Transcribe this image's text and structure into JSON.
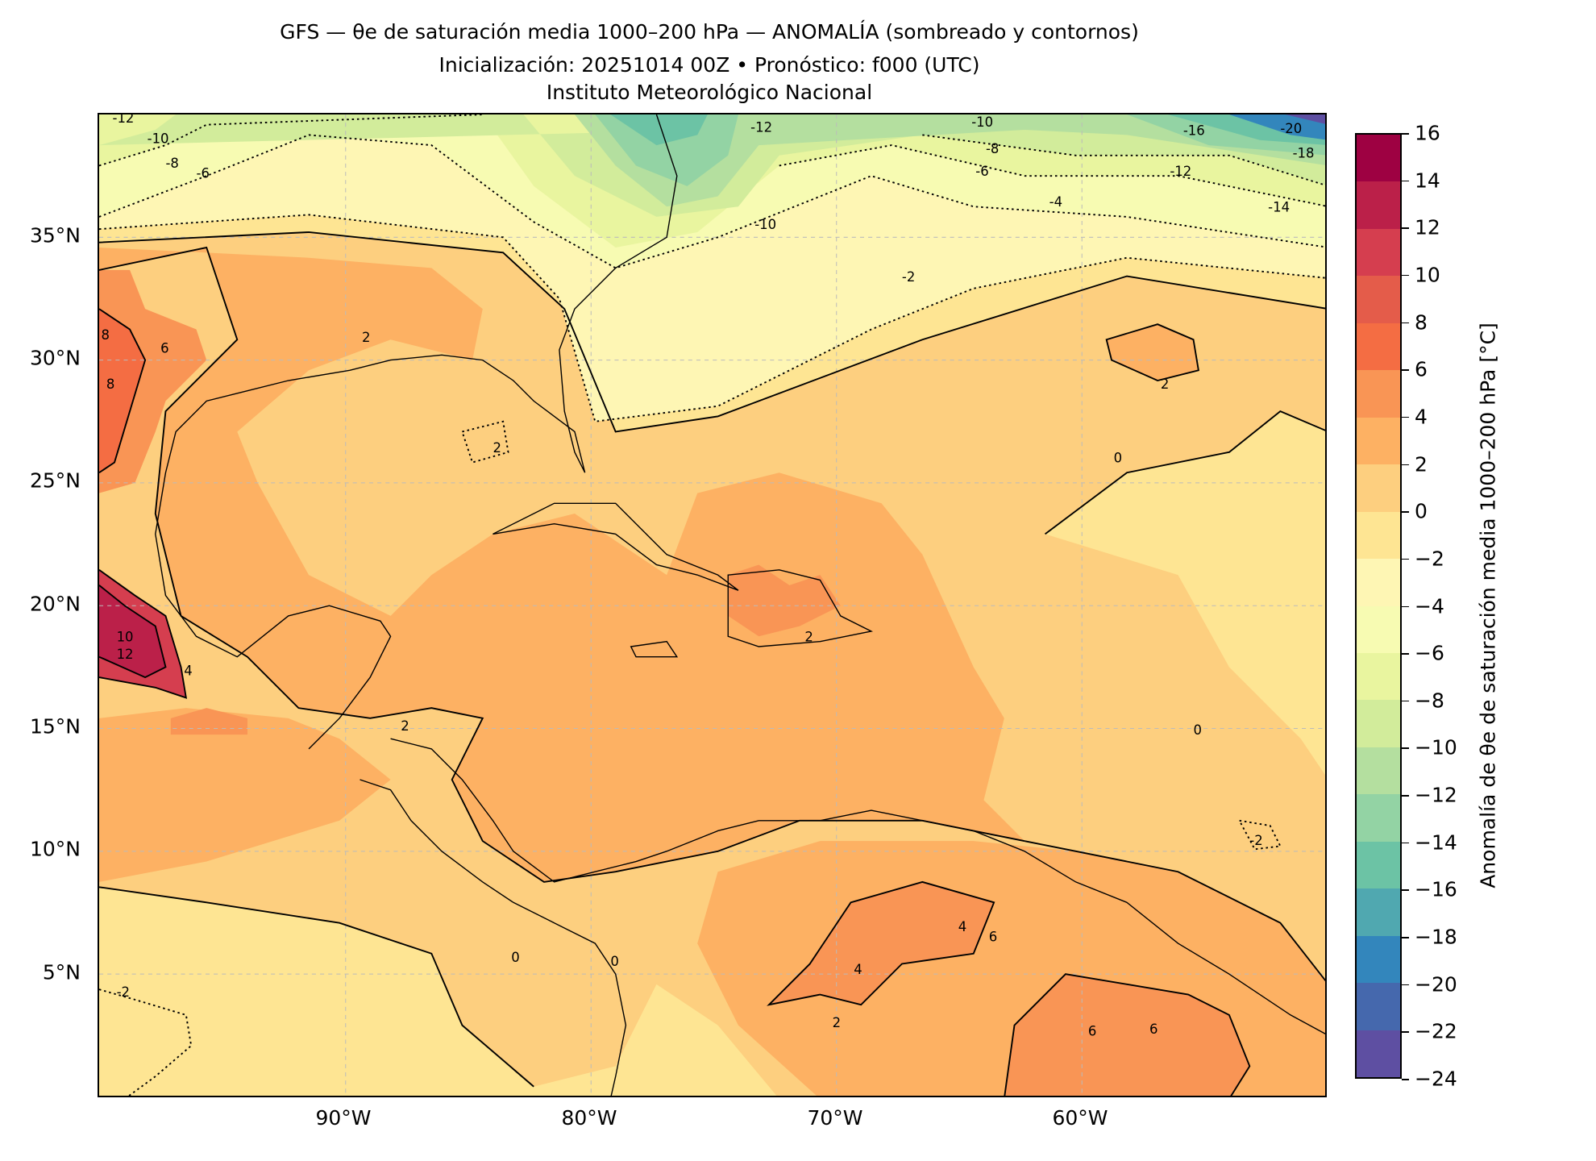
{
  "title": {
    "line1": "GFS — θe de saturación media 1000–200 hPa — ANOMALÍA (sombreado y contornos)",
    "line2": "Inicialización: 20251014 00Z   •   Pronóstico: f000 (UTC)",
    "line3": "Instituto Meteorológico Nacional"
  },
  "chart_data": {
    "type": "heatmap",
    "title": "GFS — θe de saturación media 1000–200 hPa — ANOMALÍA (sombreado y contornos)",
    "subtitle": "Inicialización: 20251014 00Z • Pronóstico: f000 (UTC)",
    "xlabel": "",
    "ylabel": "",
    "x_ticks": [
      "90°W",
      "80°W",
      "70°W",
      "60°W"
    ],
    "y_ticks": [
      "35°N",
      "30°N",
      "25°N",
      "20°N",
      "15°N",
      "10°N",
      "5°N"
    ],
    "lon_range": [
      -100,
      -50
    ],
    "lat_range": [
      0,
      40
    ],
    "grid": true,
    "colorbar": {
      "label": "Anomalía de θe de saturación media 1000–200 hPa [°C]",
      "ticks": [
        "16",
        "14",
        "12",
        "10",
        "8",
        "6",
        "4",
        "2",
        "0",
        "−2",
        "−4",
        "−6",
        "−8",
        "−10",
        "−12",
        "−14",
        "−16",
        "−18",
        "−20",
        "−22",
        "−24"
      ],
      "range": [
        -24,
        16
      ],
      "colors": [
        "#9e0142",
        "#bb2049",
        "#d53e4f",
        "#e45c4a",
        "#f46d43",
        "#f99555",
        "#fdb163",
        "#fdcf7f",
        "#fee593",
        "#fef6b4",
        "#f7fbb2",
        "#e9f59f",
        "#d2ec9b",
        "#b4df9f",
        "#93d3a4",
        "#6cc3a5",
        "#50a8b0",
        "#3386bc",
        "#4568ad",
        "#5e4fa2"
      ],
      "location": "right"
    },
    "contour_labels": [
      "-12",
      "-10",
      "-8",
      "-6",
      "-12",
      "-10",
      "-10",
      "-8",
      "-6",
      "-4",
      "-2",
      "-16",
      "-12",
      "-20",
      "-18",
      "-14",
      "2",
      "2",
      "0",
      "8",
      "6",
      "8",
      "10",
      "12",
      "4",
      "2",
      "2",
      "2",
      "4",
      "6",
      "6",
      "6",
      "0",
      "-2",
      "-2",
      "0",
      "2",
      "4",
      "0"
    ]
  }
}
